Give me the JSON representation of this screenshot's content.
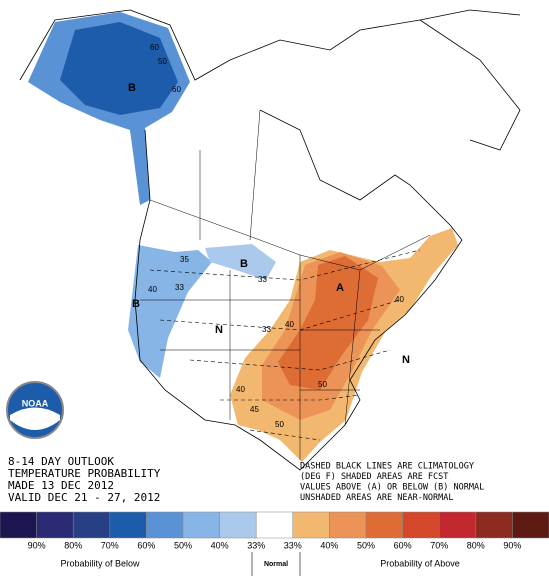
{
  "header": {
    "lines": [
      "8-14 DAY OUTLOOK",
      "TEMPERATURE PROBABILITY",
      "MADE  13 DEC 2012",
      "VALID  DEC 21 - 27, 2012"
    ]
  },
  "notes": {
    "lines": [
      "DASHED BLACK LINES ARE CLIMATOLOGY",
      "(DEG F) SHADED AREAS ARE FCST",
      "VALUES ABOVE (A) OR BELOW (B) NORMAL",
      "UNSHADED AREAS ARE NEAR-NORMAL"
    ]
  },
  "logo_text": "NOAA",
  "map_labels": [
    "B",
    "60",
    "60",
    "50",
    "B",
    "B",
    "35",
    "40",
    "33",
    "33",
    "N",
    "A",
    "40",
    "40",
    "50",
    "45",
    "50",
    "40",
    "N",
    "33"
  ],
  "legend": {
    "colors": [
      "#1c1650",
      "#2a2a74",
      "#283f86",
      "#1d5cab",
      "#5a92d6",
      "#86b5e6",
      "#aac9ec",
      "#ffffff",
      "#f2b870",
      "#ec9457",
      "#dd6c35",
      "#d4472a",
      "#c3282e",
      "#8e2b20",
      "#5d1a12"
    ],
    "labels": [
      "90%",
      "80%",
      "70%",
      "60%",
      "50%",
      "40%",
      "33%",
      "33%",
      "40%",
      "50%",
      "60%",
      "70%",
      "80%",
      "90%"
    ],
    "below": "Probability of Below",
    "normal": "Normal",
    "above": "Probability of Above"
  }
}
